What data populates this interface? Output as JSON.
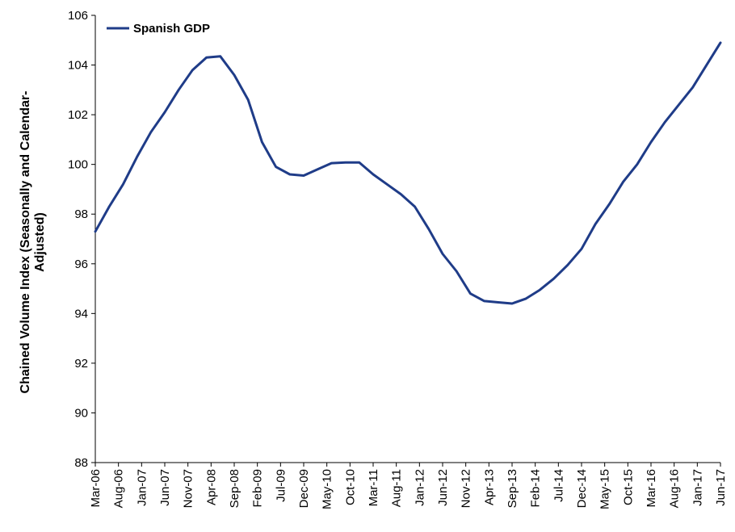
{
  "chart_data": {
    "type": "line",
    "title": "",
    "xlabel": "",
    "ylabel": "Chained Volume Index (Seasonally and Calendar-Adjusted)",
    "ylabel_lines": [
      "Chained Volume Index (Seasonally and Calendar-",
      "Adjusted)"
    ],
    "ylim": [
      88,
      106
    ],
    "yticks": [
      88,
      90,
      92,
      94,
      96,
      98,
      100,
      102,
      104,
      106
    ],
    "yticks_labels": [
      "88",
      "90",
      "92",
      "94",
      "96",
      "98",
      "100",
      "102",
      "104",
      "106"
    ],
    "grid": false,
    "legend": "top-left",
    "x_tick_labels": [
      "Mar-06",
      "Aug-06",
      "Jan-07",
      "Jun-07",
      "Nov-07",
      "Apr-08",
      "Sep-08",
      "Feb-09",
      "Jul-09",
      "Dec-09",
      "May-10",
      "Oct-10",
      "Mar-11",
      "Aug-11",
      "Jan-12",
      "Jun-12",
      "Nov-12",
      "Apr-13",
      "Sep-13",
      "Feb-14",
      "Jul-14",
      "Dec-14",
      "May-15",
      "Oct-15",
      "Mar-16",
      "Aug-16",
      "Jan-17",
      "Jun-17"
    ],
    "color": "#1f3c88",
    "series": [
      {
        "name": "Spanish GDP",
        "x": [
          "Mar-06",
          "Jun-06",
          "Sep-06",
          "Dec-06",
          "Mar-07",
          "Jun-07",
          "Sep-07",
          "Dec-07",
          "Mar-08",
          "Jun-08",
          "Sep-08",
          "Dec-08",
          "Mar-09",
          "Jun-09",
          "Sep-09",
          "Dec-09",
          "Mar-10",
          "Jun-10",
          "Sep-10",
          "Dec-10",
          "Mar-11",
          "Jun-11",
          "Sep-11",
          "Dec-11",
          "Mar-12",
          "Jun-12",
          "Sep-12",
          "Dec-12",
          "Mar-13",
          "Jun-13",
          "Sep-13",
          "Dec-13",
          "Mar-14",
          "Jun-14",
          "Sep-14",
          "Dec-14",
          "Mar-15",
          "Jun-15",
          "Sep-15",
          "Dec-15",
          "Mar-16",
          "Jun-16",
          "Sep-16",
          "Dec-16",
          "Mar-17",
          "Jun-17"
        ],
        "values": [
          97.3,
          98.3,
          99.2,
          100.3,
          101.3,
          102.1,
          103.0,
          103.8,
          104.3,
          104.35,
          103.6,
          102.6,
          100.9,
          99.9,
          99.6,
          99.55,
          99.8,
          100.05,
          100.08,
          100.08,
          99.6,
          99.2,
          98.8,
          98.3,
          97.4,
          96.4,
          95.7,
          94.8,
          94.5,
          94.45,
          94.4,
          94.6,
          94.95,
          95.4,
          95.95,
          96.6,
          97.6,
          98.4,
          99.3,
          100.0,
          100.9,
          101.7,
          102.4,
          103.1,
          104.0,
          104.9
        ]
      }
    ]
  }
}
